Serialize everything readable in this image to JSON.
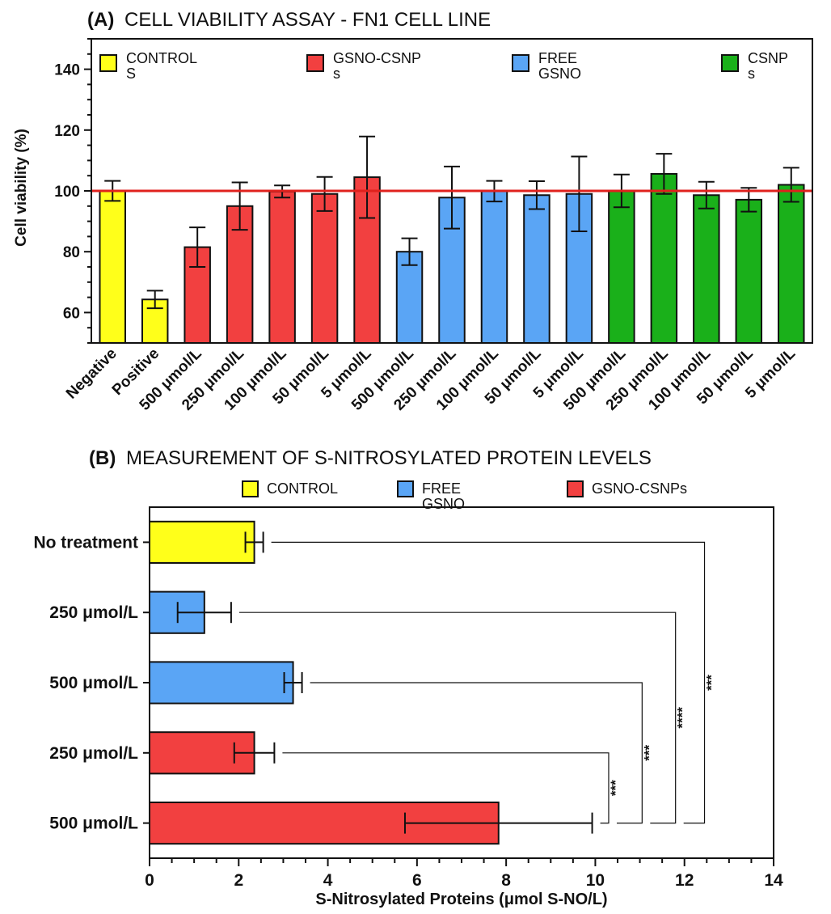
{
  "chart_data": [
    {
      "panel": "(A)",
      "title": "CELL VIABILITY ASSAY - FN1 CELL LINE",
      "type": "bar",
      "ylabel": "Cell viability (%)",
      "ylim": [
        50,
        150
      ],
      "yticks": [
        60,
        80,
        100,
        120,
        140
      ],
      "reference_line": 100,
      "reference_color": "#e0211d",
      "legend": [
        {
          "lines": [
            "CONTROL",
            "S"
          ],
          "color": "#ffff1a"
        },
        {
          "lines": [
            "GSNO-CSNP",
            "s"
          ],
          "color": "#f24040"
        },
        {
          "lines": [
            "FREE",
            "GSNO"
          ],
          "color": "#5aa5f5"
        },
        {
          "lines": [
            "CSNP",
            "s"
          ],
          "color": "#1ab01a"
        }
      ],
      "categories": [
        "Negative",
        "Positive",
        "500 μmol/L",
        "250 μmol/L",
        "100 μmol/L",
        "50 μmol/L",
        "5 μmol/L",
        "500 μmol/L",
        "250 μmol/L",
        "100 μmol/L",
        "50 μmol/L",
        "5 μmol/L",
        "500 μmol/L",
        "250 μmol/L",
        "100 μmol/L",
        "50 μmol/L",
        "5 μmol/L"
      ],
      "values": [
        100,
        64.3,
        81.5,
        95,
        99.8,
        99,
        104.5,
        80,
        97.8,
        99.9,
        98.6,
        99,
        100,
        105.6,
        98.6,
        97.1,
        102
      ],
      "errors": [
        3.3,
        2.9,
        6.5,
        7.8,
        2,
        5.6,
        13.4,
        4.4,
        10.2,
        3.4,
        4.6,
        12.3,
        5.4,
        6.6,
        4.4,
        3.9,
        5.6
      ],
      "colors": [
        "#ffff1a",
        "#ffff1a",
        "#f24040",
        "#f24040",
        "#f24040",
        "#f24040",
        "#f24040",
        "#5aa5f5",
        "#5aa5f5",
        "#5aa5f5",
        "#5aa5f5",
        "#5aa5f5",
        "#1ab01a",
        "#1ab01a",
        "#1ab01a",
        "#1ab01a",
        "#1ab01a"
      ]
    },
    {
      "panel": "(B)",
      "title": "MEASUREMENT OF S-NITROSYLATED PROTEIN LEVELS",
      "type": "bar",
      "orientation": "horizontal",
      "xlabel": "S-Nitrosylated Proteins (μmol S-NO/L)",
      "xlim": [
        0,
        14
      ],
      "xticks": [
        0,
        2,
        4,
        6,
        8,
        10,
        12,
        14
      ],
      "legend": [
        {
          "lines": [
            "CONTROL"
          ],
          "color": "#ffff1a"
        },
        {
          "lines": [
            "FREE",
            "GSNO"
          ],
          "color": "#5aa5f5"
        },
        {
          "lines": [
            "GSNO-CSNPs"
          ],
          "color": "#f24040"
        }
      ],
      "categories": [
        "No treatment",
        "250 μmol/L",
        "500 μmol/L",
        "250 μmol/L",
        "500 μmol/L"
      ],
      "values": [
        2.35,
        1.23,
        3.22,
        2.35,
        7.83
      ],
      "errors": [
        0.2,
        0.6,
        0.2,
        0.45,
        2.1
      ],
      "colors": [
        "#ffff1a",
        "#5aa5f5",
        "#5aa5f5",
        "#f24040",
        "#f24040"
      ],
      "significance": [
        {
          "from_index": 3,
          "to_index": 4,
          "label": "***"
        },
        {
          "from_index": 2,
          "to_index": 4,
          "label": "***"
        },
        {
          "from_index": 1,
          "to_index": 4,
          "label": "****"
        },
        {
          "from_index": 0,
          "to_index": 4,
          "label": "***"
        }
      ]
    }
  ]
}
